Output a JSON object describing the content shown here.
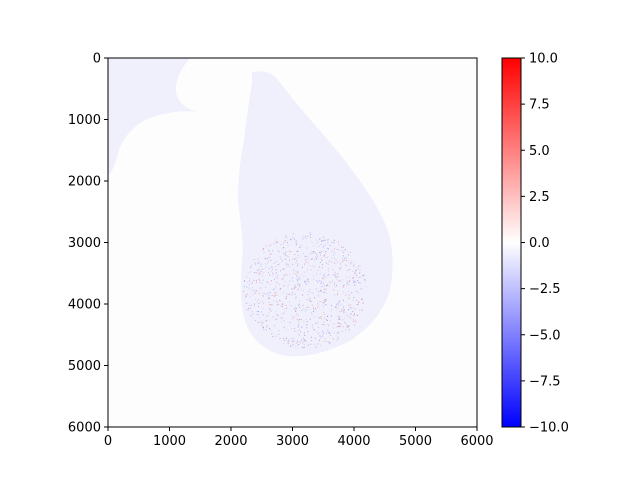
{
  "chart_data": {
    "type": "heatmap",
    "title": "",
    "xlabel": "",
    "ylabel": "",
    "xlim": [
      0,
      6000
    ],
    "ylim": [
      6000,
      0
    ],
    "x_ticks": [
      0,
      1000,
      2000,
      3000,
      4000,
      5000,
      6000
    ],
    "y_ticks": [
      0,
      1000,
      2000,
      3000,
      4000,
      5000,
      6000
    ],
    "x_tick_labels": [
      "0",
      "1000",
      "2000",
      "3000",
      "4000",
      "5000",
      "6000"
    ],
    "y_tick_labels": [
      "0",
      "1000",
      "2000",
      "3000",
      "4000",
      "5000",
      "6000"
    ],
    "colormap": "bwr",
    "colorbar": {
      "vmin": -10.0,
      "vmax": 10.0,
      "ticks": [
        10.0,
        7.5,
        5.0,
        2.5,
        0.0,
        -2.5,
        -5.0,
        -7.5,
        -10.0
      ],
      "tick_labels": [
        "10.0",
        "7.5",
        "5.0",
        "2.5",
        "0.0",
        "−2.5",
        "−5.0",
        "−7.5",
        "−10.0"
      ],
      "colors": {
        "low": "#0000ff",
        "mid": "#ffffff",
        "high": "#ff0000"
      }
    },
    "grid": false,
    "image_description_values": {
      "background_value": 0.0,
      "land_value_approx": -0.3,
      "speckle_range": [
        -1.5,
        1.5
      ]
    }
  }
}
